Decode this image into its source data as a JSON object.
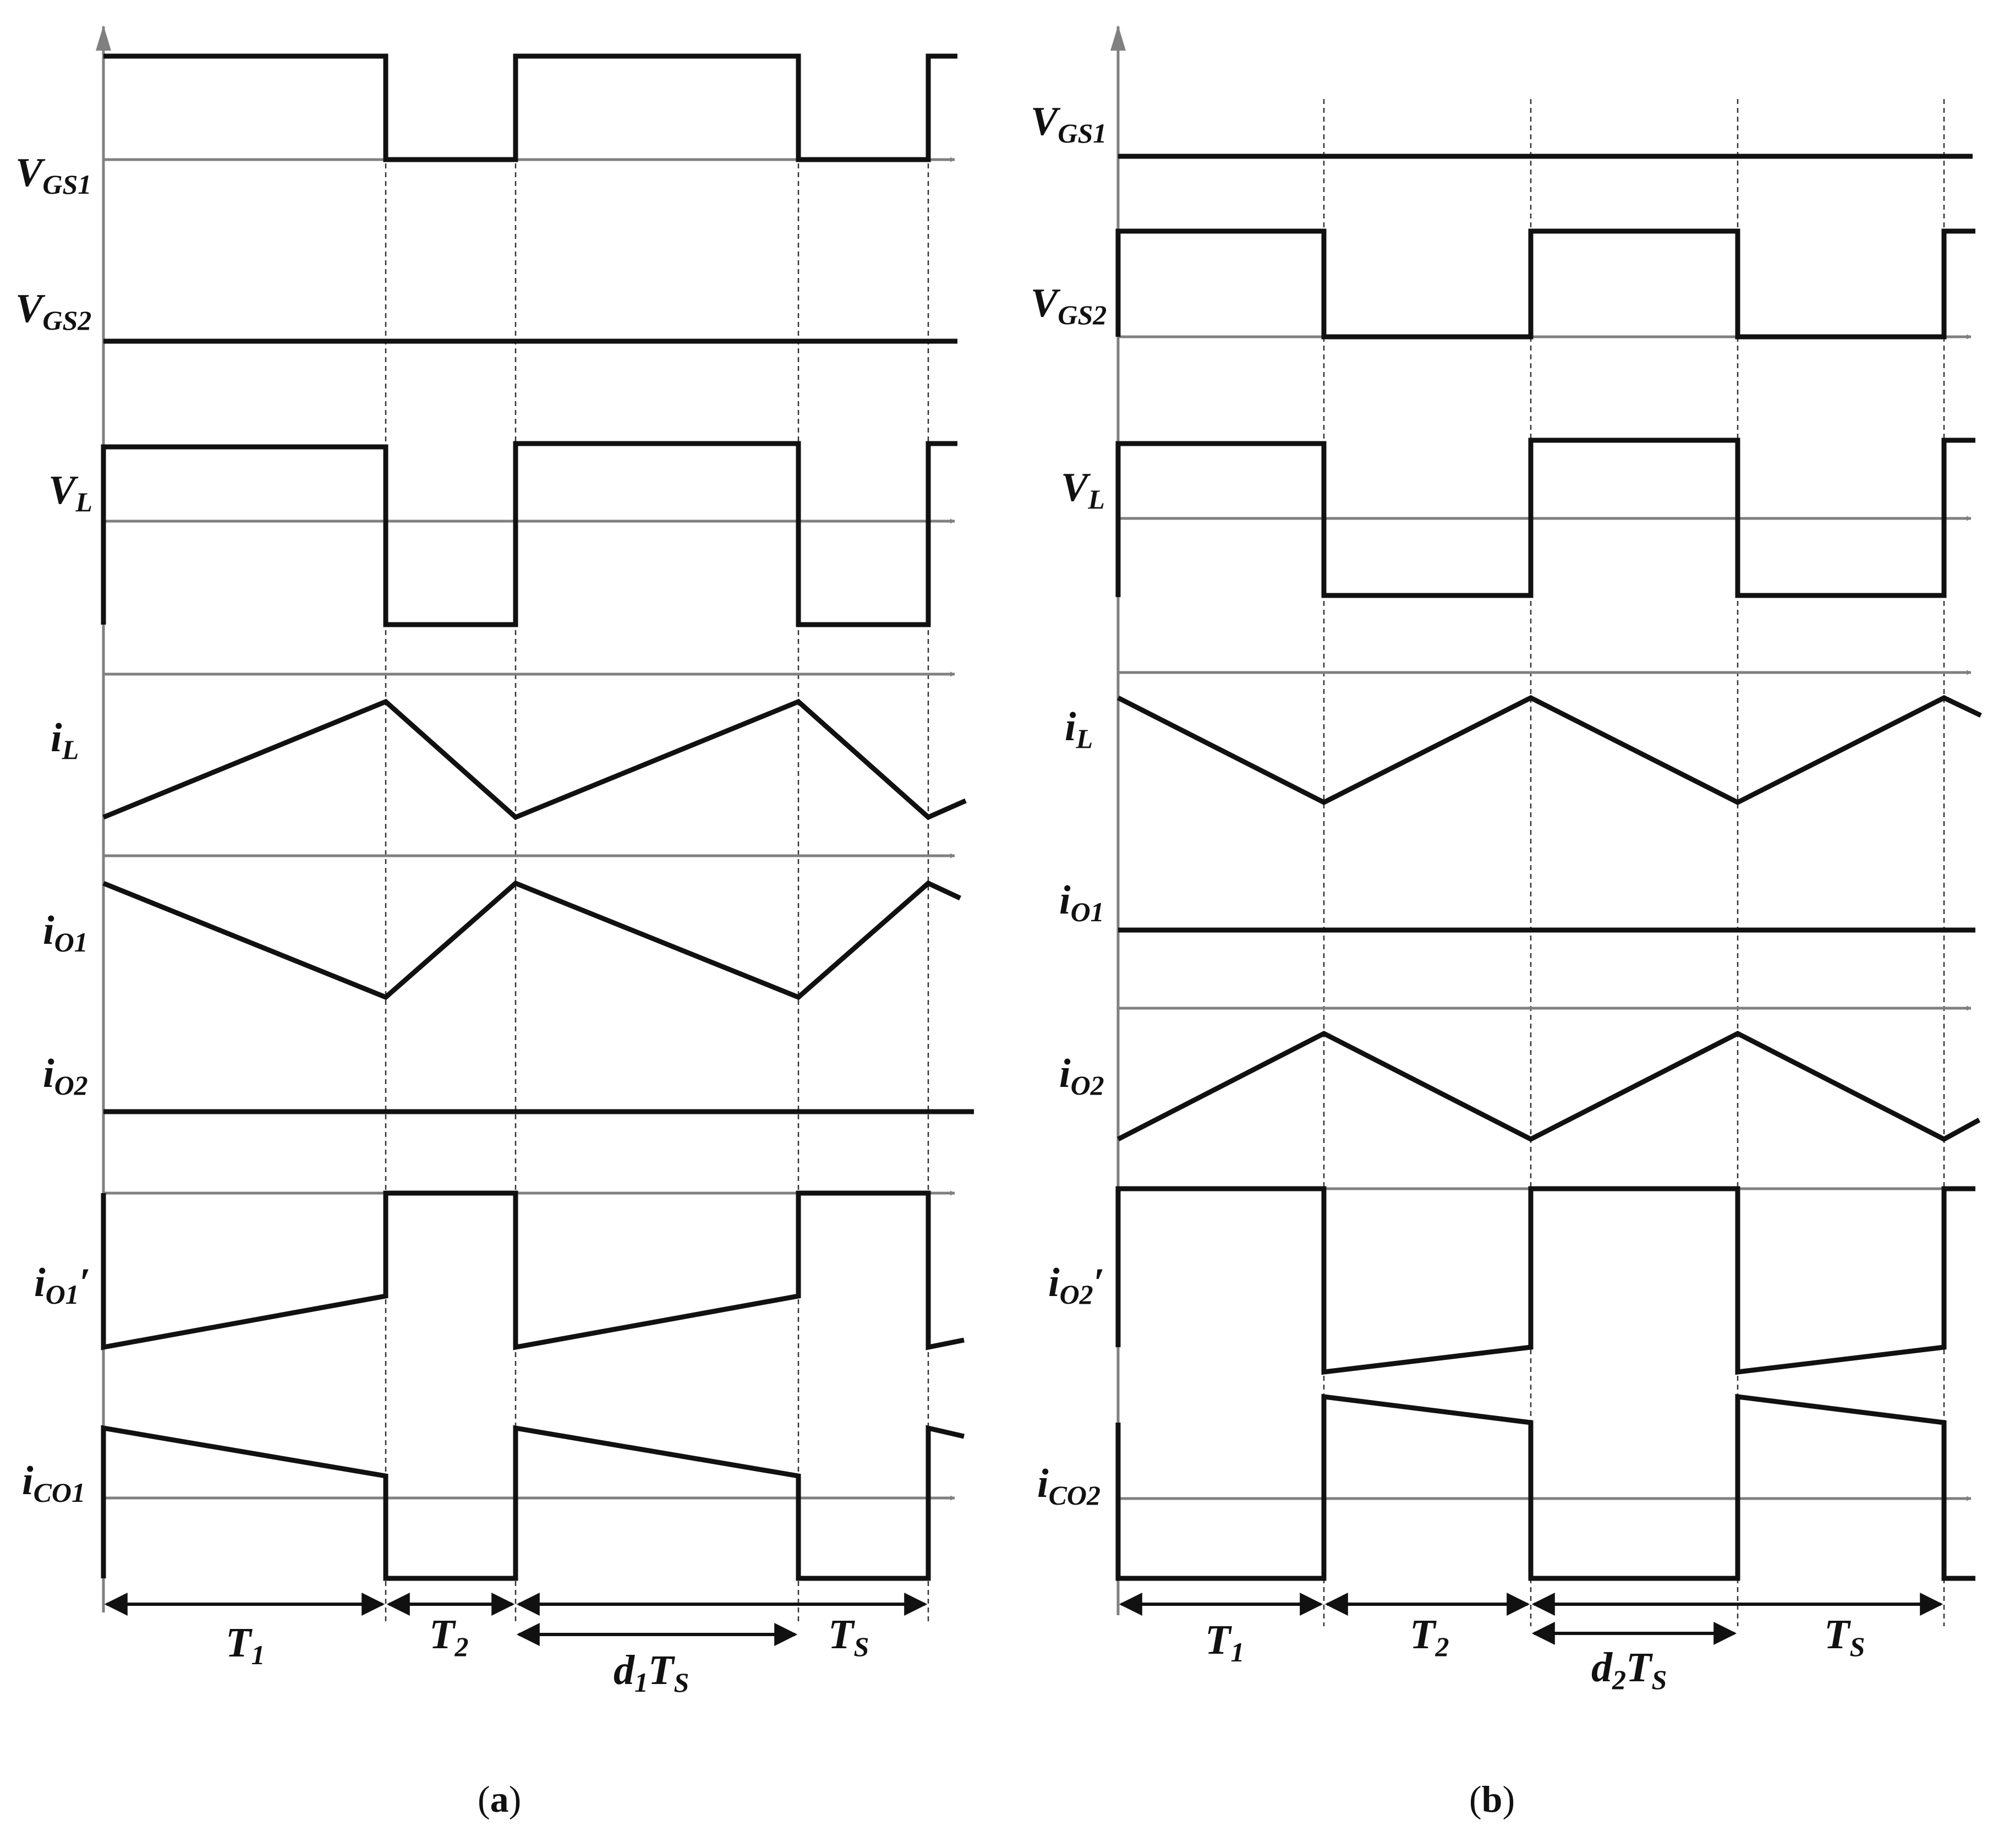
{
  "panels": [
    {
      "id": "a",
      "caption": {
        "open": "(",
        "letter": "a",
        "close": ")"
      },
      "signals": [
        {
          "main": "V",
          "sub": "GS1",
          "prime": ""
        },
        {
          "main": "V",
          "sub": "GS2",
          "prime": ""
        },
        {
          "main": "V",
          "sub": "L",
          "prime": ""
        },
        {
          "main": "i",
          "sub": "L",
          "prime": ""
        },
        {
          "main": "i",
          "sub": "O1",
          "prime": ""
        },
        {
          "main": "i",
          "sub": "O2",
          "prime": ""
        },
        {
          "main": "i",
          "sub": "O1",
          "prime": "′"
        },
        {
          "main": "i",
          "sub": "CO1",
          "prime": ""
        }
      ],
      "intervals": [
        {
          "main": "T",
          "sub": "1"
        },
        {
          "main": "T",
          "sub": "2"
        },
        {
          "main": "d",
          "sub": "1",
          "tail": "T",
          "tailsub": "S"
        },
        {
          "main": "T",
          "sub": "S"
        }
      ]
    },
    {
      "id": "b",
      "caption": {
        "open": "(",
        "letter": "b",
        "close": ")"
      },
      "signals": [
        {
          "main": "V",
          "sub": "GS1",
          "prime": ""
        },
        {
          "main": "V",
          "sub": "GS2",
          "prime": ""
        },
        {
          "main": "V",
          "sub": "L",
          "prime": ""
        },
        {
          "main": "i",
          "sub": "L",
          "prime": ""
        },
        {
          "main": "i",
          "sub": "O1",
          "prime": ""
        },
        {
          "main": "i",
          "sub": "O2",
          "prime": ""
        },
        {
          "main": "i",
          "sub": "O2",
          "prime": "′"
        },
        {
          "main": "i",
          "sub": "CO2",
          "prime": ""
        }
      ],
      "intervals": [
        {
          "main": "T",
          "sub": "1"
        },
        {
          "main": "T",
          "sub": "2"
        },
        {
          "main": "d",
          "sub": "2",
          "tail": "T",
          "tailsub": "S"
        },
        {
          "main": "T",
          "sub": "S"
        }
      ]
    }
  ]
}
